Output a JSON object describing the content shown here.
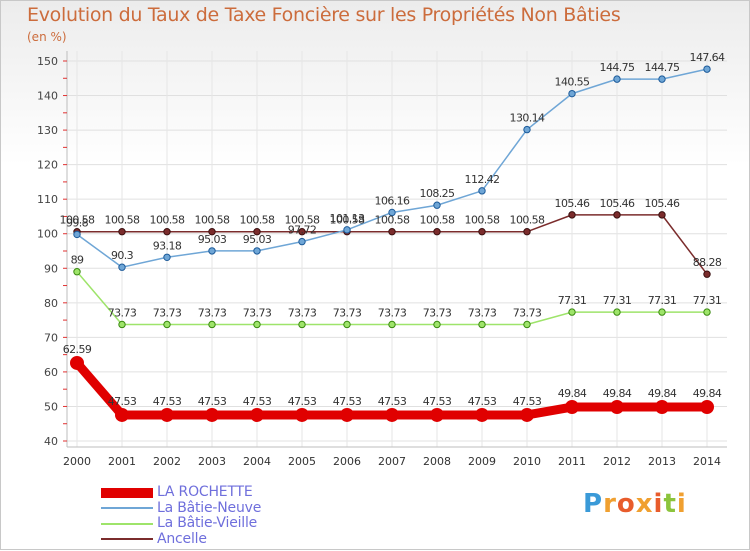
{
  "header": {
    "title": "Evolution du Taux de Taxe Foncière sur les Propriétés Non Bâties",
    "unit": "(en %)"
  },
  "brand": {
    "logo_text": "Proxiti"
  },
  "chart_data": {
    "type": "line",
    "title": "Evolution du Taux de Taxe Foncière sur les Propriétés Non Bâties",
    "ylabel": "(en %)",
    "xlabel": "",
    "x": [
      "2000",
      "2001",
      "2002",
      "2003",
      "2004",
      "2005",
      "2006",
      "2007",
      "2008",
      "2009",
      "2010",
      "2011",
      "2012",
      "2013",
      "2014"
    ],
    "ylim": [
      40,
      150
    ],
    "yticks": [
      40,
      50,
      60,
      70,
      80,
      90,
      100,
      110,
      120,
      130,
      140,
      150
    ],
    "grid": true,
    "legend_position": "bottom-left",
    "series": [
      {
        "name": "Ancelle",
        "color": "#7b2c2c",
        "values": [
          100.58,
          100.58,
          100.58,
          100.58,
          100.58,
          100.58,
          100.58,
          100.58,
          100.58,
          100.58,
          100.58,
          105.46,
          105.46,
          105.46,
          88.28
        ],
        "labels": [
          "100.58",
          "100.58",
          "100.58",
          "100.58",
          "100.58",
          "100.58",
          "100.58",
          "100.58",
          "100.58",
          "100.58",
          "100.58",
          "105.46",
          "105.46",
          "105.46",
          "88.28"
        ]
      },
      {
        "name": "La Bâtie-Vieille",
        "color": "#9ee46a",
        "values": [
          89,
          73.73,
          73.73,
          73.73,
          73.73,
          73.73,
          73.73,
          73.73,
          73.73,
          73.73,
          73.73,
          77.31,
          77.31,
          77.31,
          77.31
        ],
        "labels": [
          "89",
          "73.73",
          "73.73",
          "73.73",
          "73.73",
          "73.73",
          "73.73",
          "73.73",
          "73.73",
          "73.73",
          "73.73",
          "77.31",
          "77.31",
          "77.31",
          "77.31"
        ]
      },
      {
        "name": "La Bâtie-Neuve",
        "color": "#6fa6d6",
        "values": [
          99.8,
          90.3,
          93.18,
          95.03,
          95.03,
          97.72,
          101.13,
          106.16,
          108.25,
          112.42,
          130.14,
          140.55,
          144.75,
          144.75,
          147.64
        ],
        "labels": [
          "99.8",
          "90.3",
          "93.18",
          "95.03",
          "95.03",
          "97.72",
          "101.13",
          "106.16",
          "108.25",
          "112.42",
          "130.14",
          "140.55",
          "144.75",
          "144.75",
          "147.64"
        ]
      },
      {
        "name": "LA ROCHETTE",
        "color": "#e00000",
        "values": [
          62.59,
          47.53,
          47.53,
          47.53,
          47.53,
          47.53,
          47.53,
          47.53,
          47.53,
          47.53,
          47.53,
          49.84,
          49.84,
          49.84,
          49.84
        ],
        "labels": [
          "62.59",
          "47.53",
          "47.53",
          "47.53",
          "47.53",
          "47.53",
          "47.53",
          "47.53",
          "47.53",
          "47.53",
          "47.53",
          "49.84",
          "49.84",
          "49.84",
          "49.84"
        ]
      }
    ],
    "legend": [
      "LA ROCHETTE",
      "La Bâtie-Neuve",
      "La Bâtie-Vieille",
      "Ancelle"
    ]
  }
}
